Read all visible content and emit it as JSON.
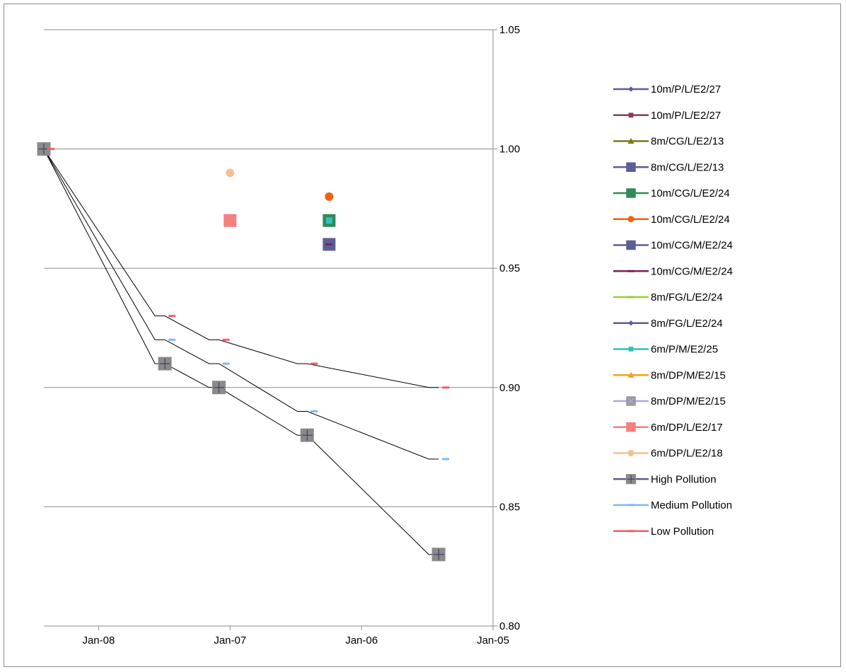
{
  "chart_data": {
    "type": "line",
    "title": "",
    "xlabel": "",
    "ylabel": "",
    "x_axis": {
      "ticks": [
        "2008-01-01",
        "2007-01-01",
        "2006-01-01",
        "2005-01-01"
      ],
      "tick_labels": [
        "Jan-08",
        "Jan-07",
        "Jan-06",
        "Jan-05"
      ],
      "range": [
        "2008-06-01",
        "2005-01-01"
      ],
      "reversed": true
    },
    "y_axis": {
      "ticks": [
        0.8,
        0.85,
        0.9,
        0.95,
        1.0,
        1.05
      ],
      "tick_labels": [
        "0.80",
        "0.85",
        "0.90",
        "0.95",
        "1.00",
        "1.05"
      ],
      "range": [
        0.8,
        1.05
      ],
      "position": "right"
    },
    "grid": true,
    "legend_position": "right",
    "series": [
      {
        "name": "10m/P/L/E2/27",
        "marker": "diamond",
        "color": "#5c5c97",
        "points": []
      },
      {
        "name": "10m/P/L/E2/27",
        "marker": "square",
        "color": "#8b3a62",
        "points": []
      },
      {
        "name": "8m/CG/L/E2/13",
        "marker": "triangle",
        "color": "#7a7a1a",
        "points": []
      },
      {
        "name": "8m/CG/L/E2/13",
        "marker": "square-large",
        "color": "#5e5e96",
        "points": []
      },
      {
        "name": "10m/CG/L/E2/24",
        "marker": "square-large",
        "color": "#2e8b57",
        "points": [
          [
            "2006-04-01",
            0.97
          ]
        ]
      },
      {
        "name": "10m/CG/L/E2/24",
        "marker": "circle",
        "color": "#f06010",
        "points": [
          [
            "2006-04-01",
            0.98
          ]
        ]
      },
      {
        "name": "10m/CG/M/E2/24",
        "marker": "square-large",
        "color": "#5e5e96",
        "points": [
          [
            "2006-04-01",
            0.96
          ]
        ]
      },
      {
        "name": "10m/CG/M/E2/24",
        "marker": "dash",
        "color": "#7b2355",
        "points": [
          [
            "2006-04-01",
            0.96
          ]
        ]
      },
      {
        "name": "8m/FG/L/E2/24",
        "marker": "dash",
        "color": "#9acd32",
        "points": []
      },
      {
        "name": "8m/FG/L/E2/24",
        "marker": "diamond",
        "color": "#5c5c97",
        "points": []
      },
      {
        "name": "6m/P/M/E2/25",
        "marker": "square",
        "color": "#30c0c0",
        "points": [
          [
            "2006-04-01",
            0.97
          ]
        ]
      },
      {
        "name": "8m/DP/M/E2/15",
        "marker": "triangle",
        "color": "#f5a020",
        "points": []
      },
      {
        "name": "8m/DP/M/E2/15",
        "marker": "x-square",
        "color": "#a8a8e0",
        "points": []
      },
      {
        "name": "6m/DP/L/E2/17",
        "marker": "square-large",
        "color": "#f58080",
        "points": [
          [
            "2007-01-01",
            0.97
          ]
        ]
      },
      {
        "name": "6m/DP/L/E2/18",
        "marker": "circle",
        "color": "#f5c090",
        "points": [
          [
            "2007-01-01",
            0.99
          ]
        ]
      },
      {
        "name": "High Pollution",
        "marker": "plus-square",
        "color": "#8a8a8a",
        "line_color": "#000000",
        "step": true,
        "points": [
          [
            "2008-06-01",
            1.0
          ],
          [
            "2007-07-01",
            0.91
          ],
          [
            "2007-02-01",
            0.9
          ],
          [
            "2006-06-01",
            0.88
          ],
          [
            "2005-06-01",
            0.83
          ]
        ]
      },
      {
        "name": "Medium Pollution",
        "marker": "dash",
        "color": "#80b8f0",
        "line_color": "#000000",
        "step": true,
        "points": [
          [
            "2008-06-01",
            1.0
          ],
          [
            "2007-07-01",
            0.92
          ],
          [
            "2007-02-01",
            0.91
          ],
          [
            "2006-06-01",
            0.89
          ],
          [
            "2005-06-01",
            0.87
          ]
        ]
      },
      {
        "name": "Low Pollution",
        "marker": "dash",
        "color": "#f06060",
        "line_color": "#000000",
        "step": true,
        "points": [
          [
            "2008-06-01",
            1.0
          ],
          [
            "2007-07-01",
            0.93
          ],
          [
            "2007-02-01",
            0.92
          ],
          [
            "2006-06-01",
            0.91
          ],
          [
            "2005-06-01",
            0.9
          ]
        ]
      }
    ]
  }
}
